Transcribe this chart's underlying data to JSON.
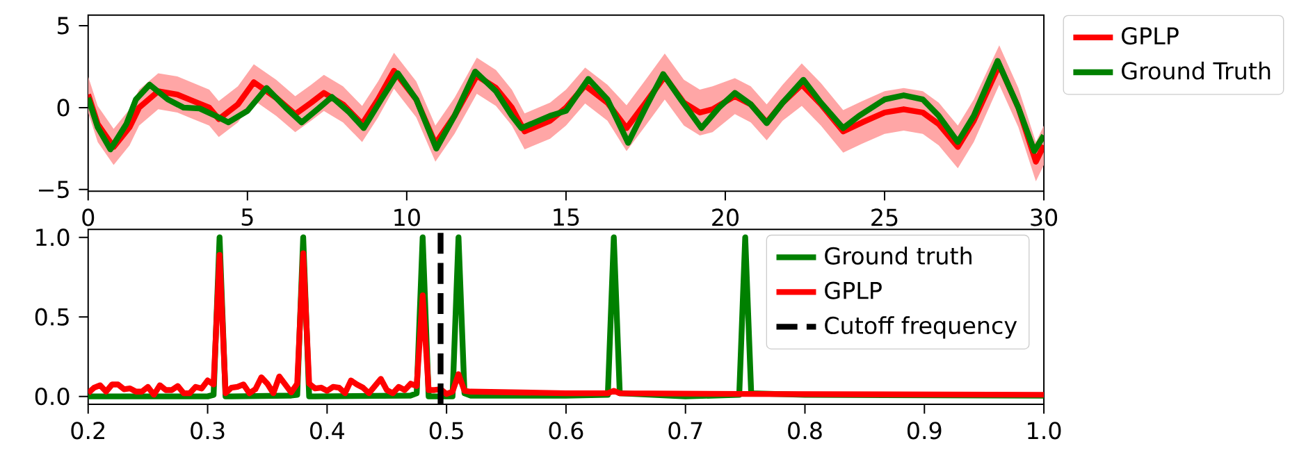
{
  "chart_data": [
    {
      "type": "line",
      "xlim": [
        0,
        30
      ],
      "ylim": [
        -5.1,
        5.65
      ],
      "xticks": [
        0,
        5,
        10,
        15,
        20,
        25,
        30
      ],
      "yticks": [
        {
          "value": -5,
          "label": "−5"
        },
        0,
        5
      ],
      "legend": "right",
      "series": [
        {
          "name": "GPLP",
          "color": "#ff0000",
          "x": [
            0,
            0.3,
            0.8,
            1.3,
            1.6,
            2.2,
            2.8,
            3.3,
            3.8,
            4.1,
            4.7,
            5.2,
            5.9,
            6.5,
            7.0,
            7.4,
            8.0,
            8.6,
            9.1,
            9.6,
            10.3,
            10.9,
            11.5,
            12.2,
            12.8,
            13.3,
            13.7,
            14.5,
            15.0,
            15.6,
            16.3,
            16.9,
            17.5,
            18.1,
            18.7,
            19.2,
            19.6,
            20.3,
            20.8,
            21.3,
            21.8,
            22.4,
            23.0,
            23.7,
            24.3,
            25.0,
            25.6,
            26.2,
            26.7,
            27.3,
            27.8,
            28.6,
            29.2,
            29.75,
            30
          ],
          "values": [
            0.8,
            -1.0,
            -2.4,
            -1.2,
            0.0,
            1.0,
            0.8,
            0.4,
            0.0,
            -0.7,
            0.2,
            1.55,
            0.6,
            -0.4,
            0.3,
            0.9,
            0.2,
            -1.0,
            0.5,
            2.25,
            0.5,
            -2.2,
            -0.5,
            1.95,
            1.2,
            0.0,
            -1.45,
            -0.8,
            0.0,
            1.35,
            0.3,
            -1.25,
            0.3,
            1.9,
            0.3,
            -0.3,
            -0.1,
            0.7,
            0.2,
            -0.9,
            0.3,
            1.4,
            0.2,
            -1.45,
            -0.9,
            -0.3,
            -0.1,
            -0.3,
            -1.0,
            -2.4,
            -0.8,
            2.6,
            0.0,
            -3.3,
            -2.3
          ],
          "upper": [
            1.9,
            0.1,
            -1.3,
            -0.1,
            1.1,
            2.1,
            1.9,
            1.5,
            1.1,
            0.4,
            1.3,
            2.65,
            1.7,
            0.7,
            1.4,
            2.0,
            1.3,
            0.1,
            1.6,
            3.35,
            1.6,
            -1.1,
            0.6,
            3.05,
            2.3,
            1.1,
            -0.35,
            0.3,
            1.1,
            2.45,
            1.4,
            0.15,
            1.7,
            3.3,
            1.7,
            1.1,
            1.3,
            1.8,
            1.3,
            0.2,
            1.4,
            2.7,
            1.5,
            -0.15,
            0.4,
            1.0,
            1.2,
            1.0,
            0.3,
            -1.1,
            0.5,
            3.8,
            1.2,
            -2.1,
            -1.1
          ],
          "lower": [
            -0.3,
            -2.1,
            -3.5,
            -2.3,
            -1.1,
            -0.1,
            -0.3,
            -0.7,
            -1.1,
            -1.8,
            -0.9,
            0.45,
            -0.5,
            -1.5,
            -0.8,
            -0.2,
            -0.9,
            -2.1,
            -0.6,
            1.15,
            -0.6,
            -3.3,
            -1.6,
            0.85,
            0.1,
            -1.1,
            -2.55,
            -1.9,
            -1.1,
            0.25,
            -0.8,
            -2.65,
            -1.1,
            0.5,
            -1.1,
            -1.7,
            -1.5,
            -0.4,
            -0.9,
            -2.0,
            -0.8,
            0.1,
            -1.1,
            -2.75,
            -2.2,
            -1.6,
            -1.4,
            -1.6,
            -2.3,
            -3.7,
            -2.1,
            1.4,
            -1.2,
            -4.5,
            -3.5
          ]
        },
        {
          "name": "Ground Truth",
          "color": "#008000",
          "x": [
            0,
            0.3,
            0.7,
            1.2,
            1.5,
            1.93,
            2.5,
            3.0,
            3.5,
            4.0,
            4.4,
            5.0,
            5.6,
            6.2,
            6.7,
            7.2,
            7.65,
            8.2,
            8.65,
            9.2,
            9.72,
            10.3,
            10.93,
            11.5,
            12.15,
            12.8,
            13.3,
            13.6,
            14.5,
            15.0,
            15.7,
            16.3,
            16.95,
            17.5,
            18.05,
            18.6,
            19.25,
            19.8,
            20.3,
            20.8,
            21.3,
            21.8,
            22.45,
            23.0,
            23.7,
            24.2,
            25.0,
            25.6,
            26.2,
            26.7,
            27.3,
            27.8,
            28.55,
            29.2,
            29.7,
            30
          ],
          "values": [
            0.6,
            -1.2,
            -2.55,
            -1.0,
            0.5,
            1.4,
            0.5,
            0.0,
            -0.05,
            -0.5,
            -0.9,
            -0.2,
            1.2,
            0.0,
            -0.9,
            -0.1,
            0.65,
            -0.3,
            -1.25,
            0.5,
            2.1,
            0.5,
            -2.5,
            -0.5,
            2.2,
            1.0,
            -0.5,
            -1.25,
            -0.5,
            -0.2,
            1.75,
            0.5,
            -2.15,
            0.0,
            2.05,
            0.5,
            -1.25,
            0.0,
            0.9,
            0.2,
            -0.95,
            0.3,
            1.7,
            0.3,
            -1.25,
            -0.5,
            0.5,
            0.75,
            0.5,
            -0.5,
            -2.1,
            -0.5,
            2.85,
            0.0,
            -2.65,
            -1.7
          ]
        }
      ]
    },
    {
      "type": "line",
      "xlim": [
        0.2,
        1.0
      ],
      "ylim": [
        -0.05,
        1.05
      ],
      "xticks": [
        0.2,
        0.3,
        0.4,
        0.5,
        0.6,
        0.7,
        0.8,
        0.9,
        {
          "value": 1.0,
          "label": "1.0"
        }
      ],
      "yticks": [
        {
          "value": 0.0,
          "label": "0.0"
        },
        0.5,
        {
          "value": 1.0,
          "label": "1.0"
        }
      ],
      "legend": "top right",
      "series": [
        {
          "name": "Ground truth",
          "color": "#008000",
          "x": [
            0.2,
            0.3,
            0.305,
            0.31,
            0.315,
            0.32,
            0.37,
            0.375,
            0.38,
            0.385,
            0.39,
            0.47,
            0.475,
            0.48,
            0.485,
            0.49,
            0.505,
            0.51,
            0.515,
            0.52,
            0.6,
            0.635,
            0.64,
            0.645,
            0.7,
            0.745,
            0.75,
            0.755,
            0.8,
            1.0
          ],
          "values": [
            0.0,
            0.0,
            0.01,
            1.0,
            0.0,
            0.0,
            0.005,
            0.01,
            1.0,
            0.0,
            0.0,
            0.005,
            0.02,
            1.0,
            0.0,
            0.0,
            0.0,
            1.0,
            0.02,
            0.005,
            0.005,
            0.01,
            1.0,
            0.02,
            0.0,
            0.01,
            1.0,
            0.02,
            0.01,
            0.005
          ]
        },
        {
          "name": "GPLP",
          "color": "#ff0000",
          "x": [
            0.2,
            0.205,
            0.21,
            0.215,
            0.22,
            0.225,
            0.23,
            0.235,
            0.24,
            0.245,
            0.25,
            0.255,
            0.26,
            0.265,
            0.27,
            0.275,
            0.28,
            0.285,
            0.29,
            0.295,
            0.3,
            0.305,
            0.31,
            0.315,
            0.32,
            0.325,
            0.33,
            0.335,
            0.34,
            0.345,
            0.35,
            0.355,
            0.36,
            0.365,
            0.37,
            0.375,
            0.38,
            0.385,
            0.39,
            0.395,
            0.4,
            0.405,
            0.41,
            0.415,
            0.42,
            0.425,
            0.43,
            0.435,
            0.44,
            0.445,
            0.45,
            0.455,
            0.46,
            0.465,
            0.47,
            0.475,
            0.48,
            0.485,
            0.49,
            0.495,
            0.5,
            0.505,
            0.51,
            0.515,
            0.52,
            0.6,
            0.635,
            0.64,
            0.645,
            0.75,
            1.0
          ],
          "values": [
            0.02,
            0.055,
            0.07,
            0.03,
            0.075,
            0.075,
            0.045,
            0.05,
            0.03,
            0.03,
            0.06,
            0.01,
            0.07,
            0.04,
            0.04,
            0.065,
            0.02,
            0.02,
            0.06,
            0.05,
            0.1,
            0.075,
            0.89,
            0.02,
            0.055,
            0.06,
            0.075,
            0.02,
            0.045,
            0.12,
            0.08,
            0.02,
            0.125,
            0.075,
            0.025,
            0.08,
            0.9,
            0.08,
            0.05,
            0.055,
            0.035,
            0.06,
            0.055,
            0.02,
            0.1,
            0.075,
            0.055,
            0.02,
            0.065,
            0.11,
            0.04,
            0.02,
            0.06,
            0.04,
            0.08,
            0.065,
            0.635,
            0.04,
            0.04,
            0.045,
            0.015,
            0.03,
            0.14,
            0.035,
            0.03,
            0.02,
            0.02,
            0.035,
            0.02,
            0.015,
            0.01
          ]
        },
        {
          "name": "Cutoff frequency",
          "color": "#000000",
          "line_style": "dashed",
          "x": [
            0.495,
            0.495
          ],
          "values": [
            -0.05,
            1.05
          ]
        }
      ]
    }
  ]
}
